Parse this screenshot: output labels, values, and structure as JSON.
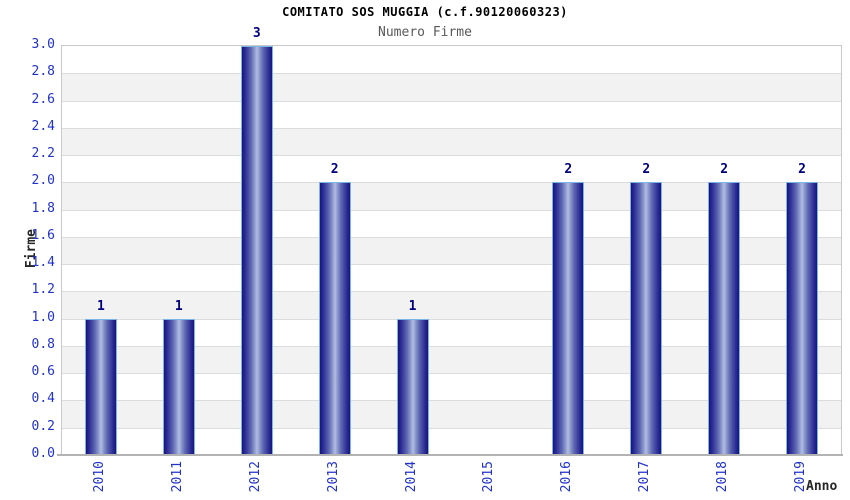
{
  "chart_data": {
    "type": "bar",
    "title": "COMITATO SOS MUGGIA (c.f.90120060323)",
    "subtitle": "Numero Firme",
    "xlabel": "Anno",
    "ylabel": "Firme",
    "categories": [
      "2010",
      "2011",
      "2012",
      "2013",
      "2014",
      "2015",
      "2016",
      "2017",
      "2018",
      "2019"
    ],
    "values": [
      1,
      1,
      3,
      2,
      1,
      0,
      2,
      2,
      2,
      2
    ],
    "bar_labels": [
      "1",
      "1",
      "3",
      "2",
      "1",
      "",
      "2",
      "2",
      "2",
      "2"
    ],
    "ylim": [
      0.0,
      3.0
    ],
    "ytick_step": 0.2,
    "yticks": [
      "0.0",
      "0.2",
      "0.4",
      "0.6",
      "0.8",
      "1.0",
      "1.2",
      "1.4",
      "1.6",
      "1.8",
      "2.0",
      "2.2",
      "2.4",
      "2.6",
      "2.8",
      "3.0"
    ],
    "grid": true,
    "legend": "none",
    "plot_background": "alternating-horizontal-bands"
  },
  "colors": {
    "tick_label": "#2233cc",
    "value_label": "#00007f",
    "bar_edge": "#15157c",
    "bar_center": "#b2bee2",
    "bar_border": "#7db4e6",
    "band_gray": "#f2f2f2",
    "band_white": "#ffffff",
    "gridline": "#dcdcdc",
    "plot_border": "#c9c9c9",
    "axis_line": "#b3b3b3",
    "axis_title": "#262626",
    "title": "#000000",
    "subtitle": "#595959"
  }
}
